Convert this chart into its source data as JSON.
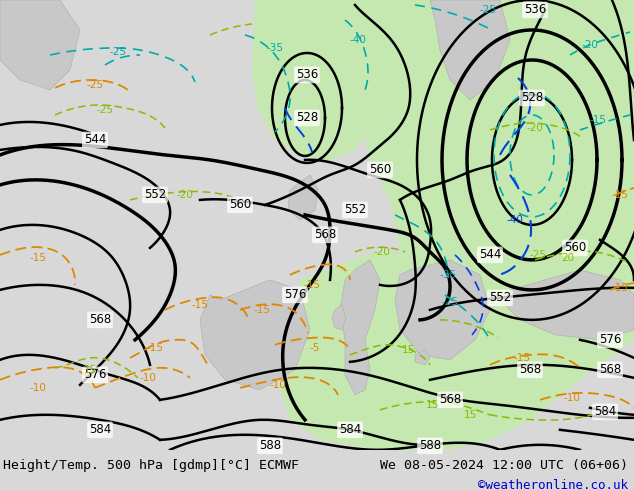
{
  "title_left": "Height/Temp. 500 hPa [gdmp][°C] ECMWF",
  "title_right": "We 08-05-2024 12:00 UTC (06+06)",
  "credit": "©weatheronline.co.uk",
  "footer_bg": "#d8d8d8",
  "map_bg_gray": "#c8c8c8",
  "map_bg_white": "#f0f0f0",
  "map_bg_green": "#b8dba8",
  "map_bg_green2": "#c8e8b0",
  "contour_black": "#000000",
  "contour_blue": "#0066ff",
  "contour_cyan": "#00aaaa",
  "contour_orange": "#dd8800",
  "contour_green": "#88aa00",
  "credit_color": "#0000cc",
  "font_size_footer": 9.5,
  "font_size_credit": 9
}
